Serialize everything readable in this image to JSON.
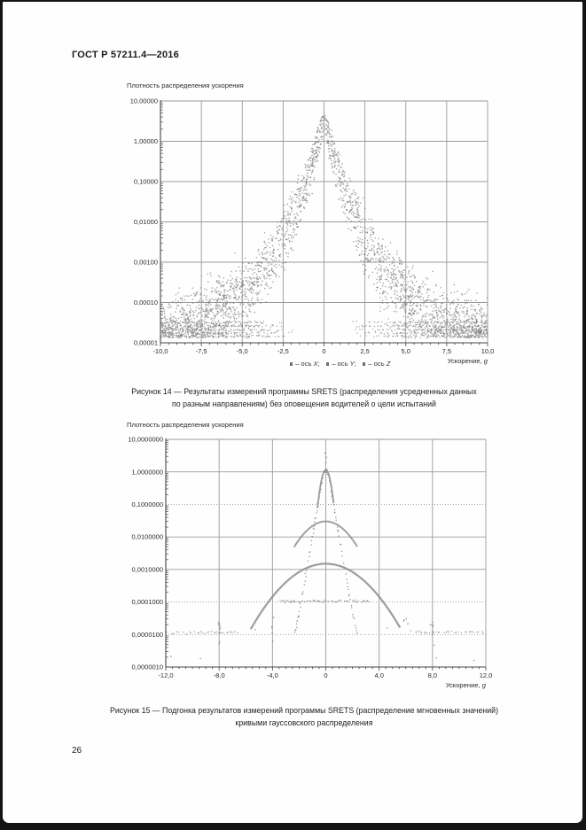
{
  "page": {
    "header": "ГОСТ Р 57211.4—2016",
    "page_number": "26"
  },
  "figure14": {
    "legend": [
      {
        "prefix": "– ось ",
        "axis": "X",
        "suffix": ";"
      },
      {
        "prefix": "– ось ",
        "axis": "Y",
        "suffix": ";"
      },
      {
        "prefix": "– ось ",
        "axis": "Z",
        "suffix": ""
      }
    ],
    "caption": [
      "Рисунок 14 — Результаты измерений программы SRETS (распределения усредненных данных",
      "по разным направлениям) без оповещения водителей о цели испытаний"
    ]
  },
  "figure15": {
    "caption": [
      "Рисунок 15 — Подгонка результатов измерений программы SRETS (распределение мгновенных значений)",
      "кривыми гауссовского распределения"
    ]
  },
  "chart_data": [
    {
      "type": "scatter",
      "name": "figure-14-plot",
      "title": "Плотность распределения ускорения",
      "xlabel": [
        "Ускорение, ",
        "g"
      ],
      "xlim": [
        -10,
        10
      ],
      "x_major_step": 2.5,
      "x_minor_step": 0.5,
      "x_tick_labels": [
        "-10,0",
        "-7,5",
        "-5,0",
        "-2,5",
        "0",
        "2,5",
        "5,0",
        "7,5",
        "10,0"
      ],
      "y_decades_top": 1,
      "y_decades_bottom": -5,
      "y_tick_labels": [
        "10,00000",
        "1,00000",
        "0,10000",
        "0,01000",
        "0,00100",
        "0,00010",
        "0,00001"
      ],
      "dotted_decades": [],
      "legend": [
        "ось X",
        "ось Y",
        "ось Z"
      ],
      "grid": true,
      "ylog": true,
      "envelope": [
        [
          0,
          4.0
        ],
        [
          0.2,
          1.8
        ],
        [
          0.4,
          0.85
        ],
        [
          0.6,
          0.42
        ],
        [
          0.8,
          0.22
        ],
        [
          1,
          0.12
        ],
        [
          1.25,
          0.062
        ],
        [
          1.5,
          0.034
        ],
        [
          1.75,
          0.019
        ],
        [
          2,
          0.011
        ],
        [
          2.25,
          0.0065
        ],
        [
          2.5,
          0.004
        ],
        [
          2.75,
          0.0026
        ],
        [
          3,
          0.0017
        ],
        [
          3.25,
          0.00115
        ],
        [
          3.5,
          0.0008
        ],
        [
          3.75,
          0.00058
        ],
        [
          4,
          0.00042
        ],
        [
          4.25,
          0.00032
        ],
        [
          4.5,
          0.00025
        ],
        [
          4.75,
          0.0002
        ],
        [
          5,
          0.00016
        ],
        [
          5.25,
          0.000135
        ],
        [
          5.5,
          0.000115
        ],
        [
          5.75,
          0.0001
        ],
        [
          6,
          8.5e-05
        ],
        [
          6.5,
          6.2e-05
        ],
        [
          7,
          4.8e-05
        ],
        [
          7.5,
          3.8e-05
        ],
        [
          8,
          3.2e-05
        ],
        [
          8.5,
          2.7e-05
        ],
        [
          9,
          2.4e-05
        ],
        [
          9.5,
          2.2e-05
        ],
        [
          10,
          2e-05
        ]
      ],
      "series": [
        {
          "name": "ось X",
          "wscale": 1.0,
          "yscale": 1.0,
          "n": 850,
          "seed": 11
        },
        {
          "name": "ось Y",
          "wscale": 0.9,
          "yscale": 0.6,
          "n": 850,
          "seed": 22
        },
        {
          "name": "ось Z",
          "wscale": 1.08,
          "yscale": 1.6,
          "n": 850,
          "seed": 33
        }
      ],
      "noise_sigma": [
        0.05,
        0.27
      ],
      "floor_levels": [
        1.45e-05,
        1.75e-05,
        2.1e-05,
        2.6e-05,
        3.2e-05
      ],
      "floor_x_exclude": 3.0,
      "clusters": [
        {
          "cx": -6.4,
          "sx": 0.25,
          "n": 28,
          "ymin": 6e-05,
          "ymax": 0.00032
        },
        {
          "cx": 5.25,
          "sx": 0.3,
          "n": 30,
          "ymin": 5e-05,
          "ymax": 0.00026
        },
        {
          "cx": 7.9,
          "sx": 0.35,
          "n": 12,
          "ymin": 3e-05,
          "ymax": 8e-05
        }
      ]
    },
    {
      "type": "scatter-with-gaussian-fits",
      "name": "figure-15-plot",
      "title": "Плотность распределения ускорения",
      "xlabel": [
        "Ускорение, ",
        "g"
      ],
      "xlim": [
        -12,
        12
      ],
      "x_major_step": 4,
      "x_minor_step": 0.5,
      "x_tick_labels": [
        "-12,0",
        "-8,0",
        "-4,0",
        "0",
        "4,0",
        "8,0",
        "12,0"
      ],
      "y_decades_top": 1,
      "y_decades_bottom": -6,
      "y_tick_labels": [
        "10,0000000",
        "1,0000000",
        "0,1000000",
        "0,0100000",
        "0,0010000",
        "0,0001000",
        "0,0000100",
        "0,0000010"
      ],
      "dotted_decades": [
        -1,
        -4,
        -5
      ],
      "grid": true,
      "ylog": true,
      "v_envelope": [
        [
          0,
          1.3
        ],
        [
          0.2,
          0.75
        ],
        [
          0.4,
          0.32
        ],
        [
          0.6,
          0.105
        ],
        [
          0.8,
          0.032
        ],
        [
          1,
          0.0105
        ],
        [
          1.2,
          0.0034
        ],
        [
          1.5,
          0.00065
        ],
        [
          1.8,
          0.00013
        ],
        [
          2.1,
          2.8e-05
        ],
        [
          2.35,
          1.1e-05
        ]
      ],
      "gaussians": [
        {
          "amp": 1.15,
          "sigma": 0.27,
          "xmax": 0.62
        },
        {
          "amp": 0.03,
          "sigma": 1.25,
          "xmax": 2.35
        },
        {
          "amp": 0.0015,
          "sigma": 1.85,
          "xmax": 5.6
        }
      ],
      "floor_segments": [
        {
          "y": 0.000105,
          "x1": -3.35,
          "x2": 3.25,
          "step": 0.07,
          "p": 0.85
        },
        {
          "y": 1.15e-05,
          "x1": -12.0,
          "x2": -6.6,
          "step": 0.12,
          "p": 0.6
        },
        {
          "y": 1.18e-05,
          "x1": 6.4,
          "x2": 12.0,
          "step": 0.12,
          "p": 0.6
        }
      ],
      "clusters": [
        {
          "cx": -8.0,
          "sx": 0.06,
          "n": 10,
          "ymin": 3.5e-06,
          "ymax": 2.5e-05
        },
        {
          "cx": 8.0,
          "sx": 0.06,
          "n": 10,
          "ymin": 4e-06,
          "ymax": 2.8e-05
        },
        {
          "cx": -4.0,
          "sx": 0.05,
          "n": 5,
          "ymin": 6e-06,
          "ymax": 5e-05
        },
        {
          "cx": 5.95,
          "sx": 0.15,
          "n": 4,
          "ymin": 2e-05,
          "ymax": 3.5e-05
        }
      ],
      "specks": [
        [
          -11.6,
          2.1e-06
        ],
        [
          -9.4,
          1.8e-06
        ],
        [
          8.3,
          1.9e-06
        ],
        [
          11.1,
          1.6e-06
        ],
        [
          -5.3,
          1.4e-05
        ],
        [
          4.6,
          1.6e-05
        ],
        [
          0.0,
          1.9
        ],
        [
          0.05,
          2.8
        ],
        [
          -0.08,
          3.8
        ]
      ]
    }
  ]
}
